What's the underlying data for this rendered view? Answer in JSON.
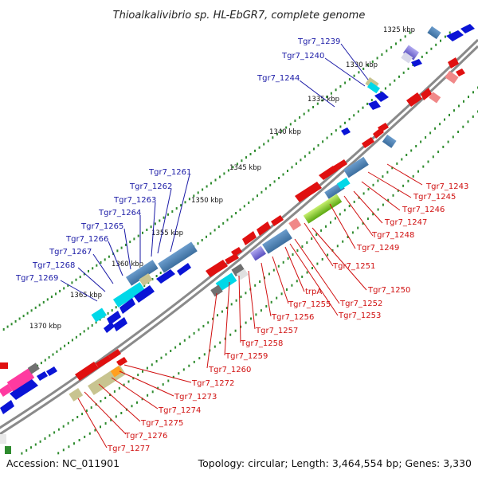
{
  "title": "Thioalkalivibrio sp. HL-EbGR7, complete genome",
  "footer": {
    "accession": "Accession: NC_011901",
    "summary": "Topology: circular; Length: 3,464,554 bp; Genes: 3,330"
  },
  "colors": {
    "background": "#ffffff",
    "backbone": "#8a8a8a",
    "tick_dots": "#2e8b2e",
    "forward_genes": "#0a14d6",
    "reverse_genes": "#e01010",
    "blue_labels": "#1a1aa6",
    "red_labels": "#d01010",
    "cyan_feature": "#00d8e8",
    "steelblue_feature": "#4a7fb0",
    "olive_feature": "#c8c490",
    "pink_feature": "#ff3aa0",
    "green_feature": "#88d820",
    "purple_feature": "#8080d8",
    "orange_feature": "#ffa020"
  },
  "kbp_markers": [
    "1325 kbp",
    "1330 kbp",
    "1335 kbp",
    "1340 kbp",
    "1345 kbp",
    "1350 kbp",
    "1355 kbp",
    "1360 kbp",
    "1365 kbp",
    "1370 kbp"
  ],
  "blue_labels": [
    "Tgr7_1239",
    "Tgr7_1240",
    "Tgr7_1244",
    "Tgr7_1261",
    "Tgr7_1262",
    "Tgr7_1263",
    "Tgr7_1264",
    "Tgr7_1265",
    "Tgr7_1266",
    "Tgr7_1267",
    "Tgr7_1268",
    "Tgr7_1269"
  ],
  "red_labels": [
    "Tgr7_1243",
    "Tgr7_1245",
    "Tgr7_1246",
    "Tgr7_1247",
    "Tgr7_1248",
    "Tgr7_1249",
    "Tgr7_1251",
    "Tgr7_1250",
    "trpA",
    "Tgr7_1255",
    "Tgr7_1252",
    "Tgr7_1253",
    "Tgr7_1256",
    "Tgr7_1257",
    "Tgr7_1258",
    "Tgr7_1259",
    "Tgr7_1260",
    "Tgr7_1272",
    "Tgr7_1273",
    "Tgr7_1274",
    "Tgr7_1275",
    "Tgr7_1276",
    "Tgr7_1277"
  ]
}
